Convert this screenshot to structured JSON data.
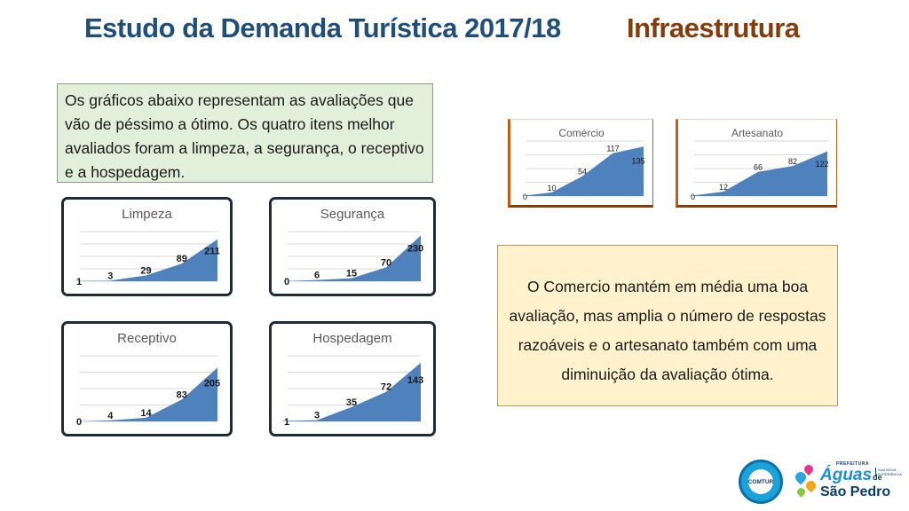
{
  "header": {
    "title": "Estudo da Demanda Turística 2017/18",
    "section": "Infraestrutura"
  },
  "intro_text": "Os gráficos abaixo representam as avaliações que vão de péssimo a ótimo. Os quatro itens melhor avaliados foram a limpeza, a segurança, o receptivo e a hospedagem.",
  "note_text": "O Comercio mantém em média uma boa avaliação, mas amplia o número de respostas razoáveis e o artesanato  também com uma diminuição da avaliação  ótima.",
  "colors": {
    "area_fill": "#4f81bd",
    "grid": "#d9d9d9",
    "intro_bg": "#e2efda",
    "note_bg": "#fff2cc",
    "title": "#1f4e79",
    "section": "#843c0c"
  },
  "chart_data": [
    {
      "id": "limpeza",
      "type": "area",
      "title": "Limpeza",
      "values": [
        1,
        3,
        29,
        89,
        211
      ],
      "ylim": [
        0,
        250
      ],
      "grid": true
    },
    {
      "id": "seguranca",
      "type": "area",
      "title": "Segurança",
      "values": [
        0,
        6,
        15,
        70,
        230
      ],
      "ylim": [
        0,
        250
      ],
      "grid": true
    },
    {
      "id": "receptivo",
      "type": "area",
      "title": "Receptivo",
      "values": [
        0,
        4,
        14,
        83,
        205
      ],
      "ylim": [
        0,
        250
      ],
      "grid": true
    },
    {
      "id": "hospedagem",
      "type": "area",
      "title": "Hospedagem",
      "values": [
        1,
        3,
        35,
        72,
        143
      ],
      "ylim": [
        0,
        160
      ],
      "grid": true
    },
    {
      "id": "comercio",
      "type": "area",
      "title": "Comércio",
      "values": [
        0,
        10,
        54,
        117,
        135
      ],
      "ylim": [
        0,
        150
      ],
      "grid": true
    },
    {
      "id": "artesanato",
      "type": "area",
      "title": "Artesanato",
      "values": [
        0,
        12,
        66,
        82,
        122
      ],
      "ylim": [
        0,
        150
      ],
      "grid": true
    }
  ],
  "logos": {
    "comtur": "COMTUR",
    "aguas_prefix": "PREFEITURA",
    "aguas_word": "Águas",
    "aguas_de": "de",
    "aguas_city": "São Pedro",
    "aguas_tagline": "SUA NOVA EXPERIÊNCIA"
  }
}
